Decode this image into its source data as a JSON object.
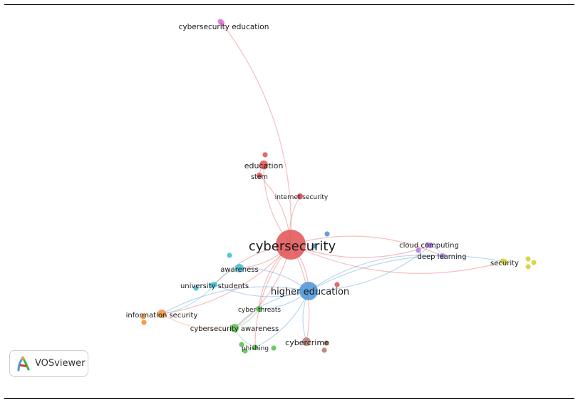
{
  "brand": {
    "name": "VOSviewer",
    "logo_colors": [
      "#4a9bd8",
      "#39b24a",
      "#d6382f",
      "#f2a33a"
    ]
  },
  "clusters": [
    {
      "id": "red",
      "color": "#e15759"
    },
    {
      "id": "blue",
      "color": "#4e97d8"
    },
    {
      "id": "cyan",
      "color": "#3fc1d6"
    },
    {
      "id": "green",
      "color": "#5cc451"
    },
    {
      "id": "orange",
      "color": "#f2923c"
    },
    {
      "id": "purple",
      "color": "#b17fe0"
    },
    {
      "id": "yellow",
      "color": "#d3d33c"
    },
    {
      "id": "brown",
      "color": "#b57e72"
    },
    {
      "id": "pink",
      "color": "#e07ad2"
    }
  ],
  "nodes": [
    {
      "id": "cybersecurity",
      "label": "cybersecurity",
      "cluster": "red",
      "size": 5
    },
    {
      "id": "higher-education",
      "label": "higher education",
      "cluster": "blue",
      "size": 4
    },
    {
      "id": "cybersecurity-education",
      "label": "cybersecurity education",
      "cluster": "pink",
      "size": 1
    },
    {
      "id": "education",
      "label": "education",
      "cluster": "red",
      "size": 2
    },
    {
      "id": "stem",
      "label": "stem",
      "cluster": "red",
      "size": 1
    },
    {
      "id": "internet-security",
      "label": "internet security",
      "cluster": "red",
      "size": 1
    },
    {
      "id": "cloud-computing",
      "label": "cloud computing",
      "cluster": "purple",
      "size": 1
    },
    {
      "id": "deep-learning",
      "label": "deep learning",
      "cluster": "purple",
      "size": 1
    },
    {
      "id": "security",
      "label": "security",
      "cluster": "yellow",
      "size": 1
    },
    {
      "id": "awareness",
      "label": "awareness",
      "cluster": "cyan",
      "size": 2
    },
    {
      "id": "university-students",
      "label": "university students",
      "cluster": "cyan",
      "size": 1
    },
    {
      "id": "information-security",
      "label": "information security",
      "cluster": "orange",
      "size": 2
    },
    {
      "id": "cyber-threats",
      "label": "cyber threats",
      "cluster": "green",
      "size": 1
    },
    {
      "id": "cybersecurity-awareness",
      "label": "cybersecurity awareness",
      "cluster": "green",
      "size": 2
    },
    {
      "id": "phishing",
      "label": "phishing",
      "cluster": "green",
      "size": 1
    },
    {
      "id": "cybercrime",
      "label": "cybercrime",
      "cluster": "brown",
      "size": 2
    }
  ],
  "edges": [
    [
      "cybersecurity",
      "higher-education"
    ],
    [
      "cybersecurity",
      "cybersecurity-education"
    ],
    [
      "cybersecurity",
      "education"
    ],
    [
      "cybersecurity",
      "stem"
    ],
    [
      "cybersecurity",
      "internet-security"
    ],
    [
      "cybersecurity",
      "cloud-computing"
    ],
    [
      "cybersecurity",
      "deep-learning"
    ],
    [
      "cybersecurity",
      "security"
    ],
    [
      "cybersecurity",
      "awareness"
    ],
    [
      "cybersecurity",
      "university-students"
    ],
    [
      "cybersecurity",
      "information-security"
    ],
    [
      "cybersecurity",
      "cyber-threats"
    ],
    [
      "cybersecurity",
      "cybersecurity-awareness"
    ],
    [
      "cybersecurity",
      "phishing"
    ],
    [
      "cybersecurity",
      "cybercrime"
    ],
    [
      "higher-education",
      "cloud-computing"
    ],
    [
      "higher-education",
      "security"
    ],
    [
      "higher-education",
      "awareness"
    ],
    [
      "higher-education",
      "university-students"
    ],
    [
      "higher-education",
      "cybercrime"
    ],
    [
      "higher-education",
      "cyber-threats"
    ],
    [
      "higher-education",
      "cybersecurity-awareness"
    ],
    [
      "higher-education",
      "phishing"
    ],
    [
      "higher-education",
      "information-security"
    ],
    [
      "higher-education",
      "deep-learning"
    ],
    [
      "awareness",
      "university-students"
    ],
    [
      "university-students",
      "information-security"
    ],
    [
      "information-security",
      "cybersecurity-awareness"
    ],
    [
      "cyber-threats",
      "cybersecurity-awareness"
    ],
    [
      "cybersecurity-awareness",
      "phishing"
    ],
    [
      "cloud-computing",
      "deep-learning"
    ],
    [
      "education",
      "stem"
    ]
  ]
}
